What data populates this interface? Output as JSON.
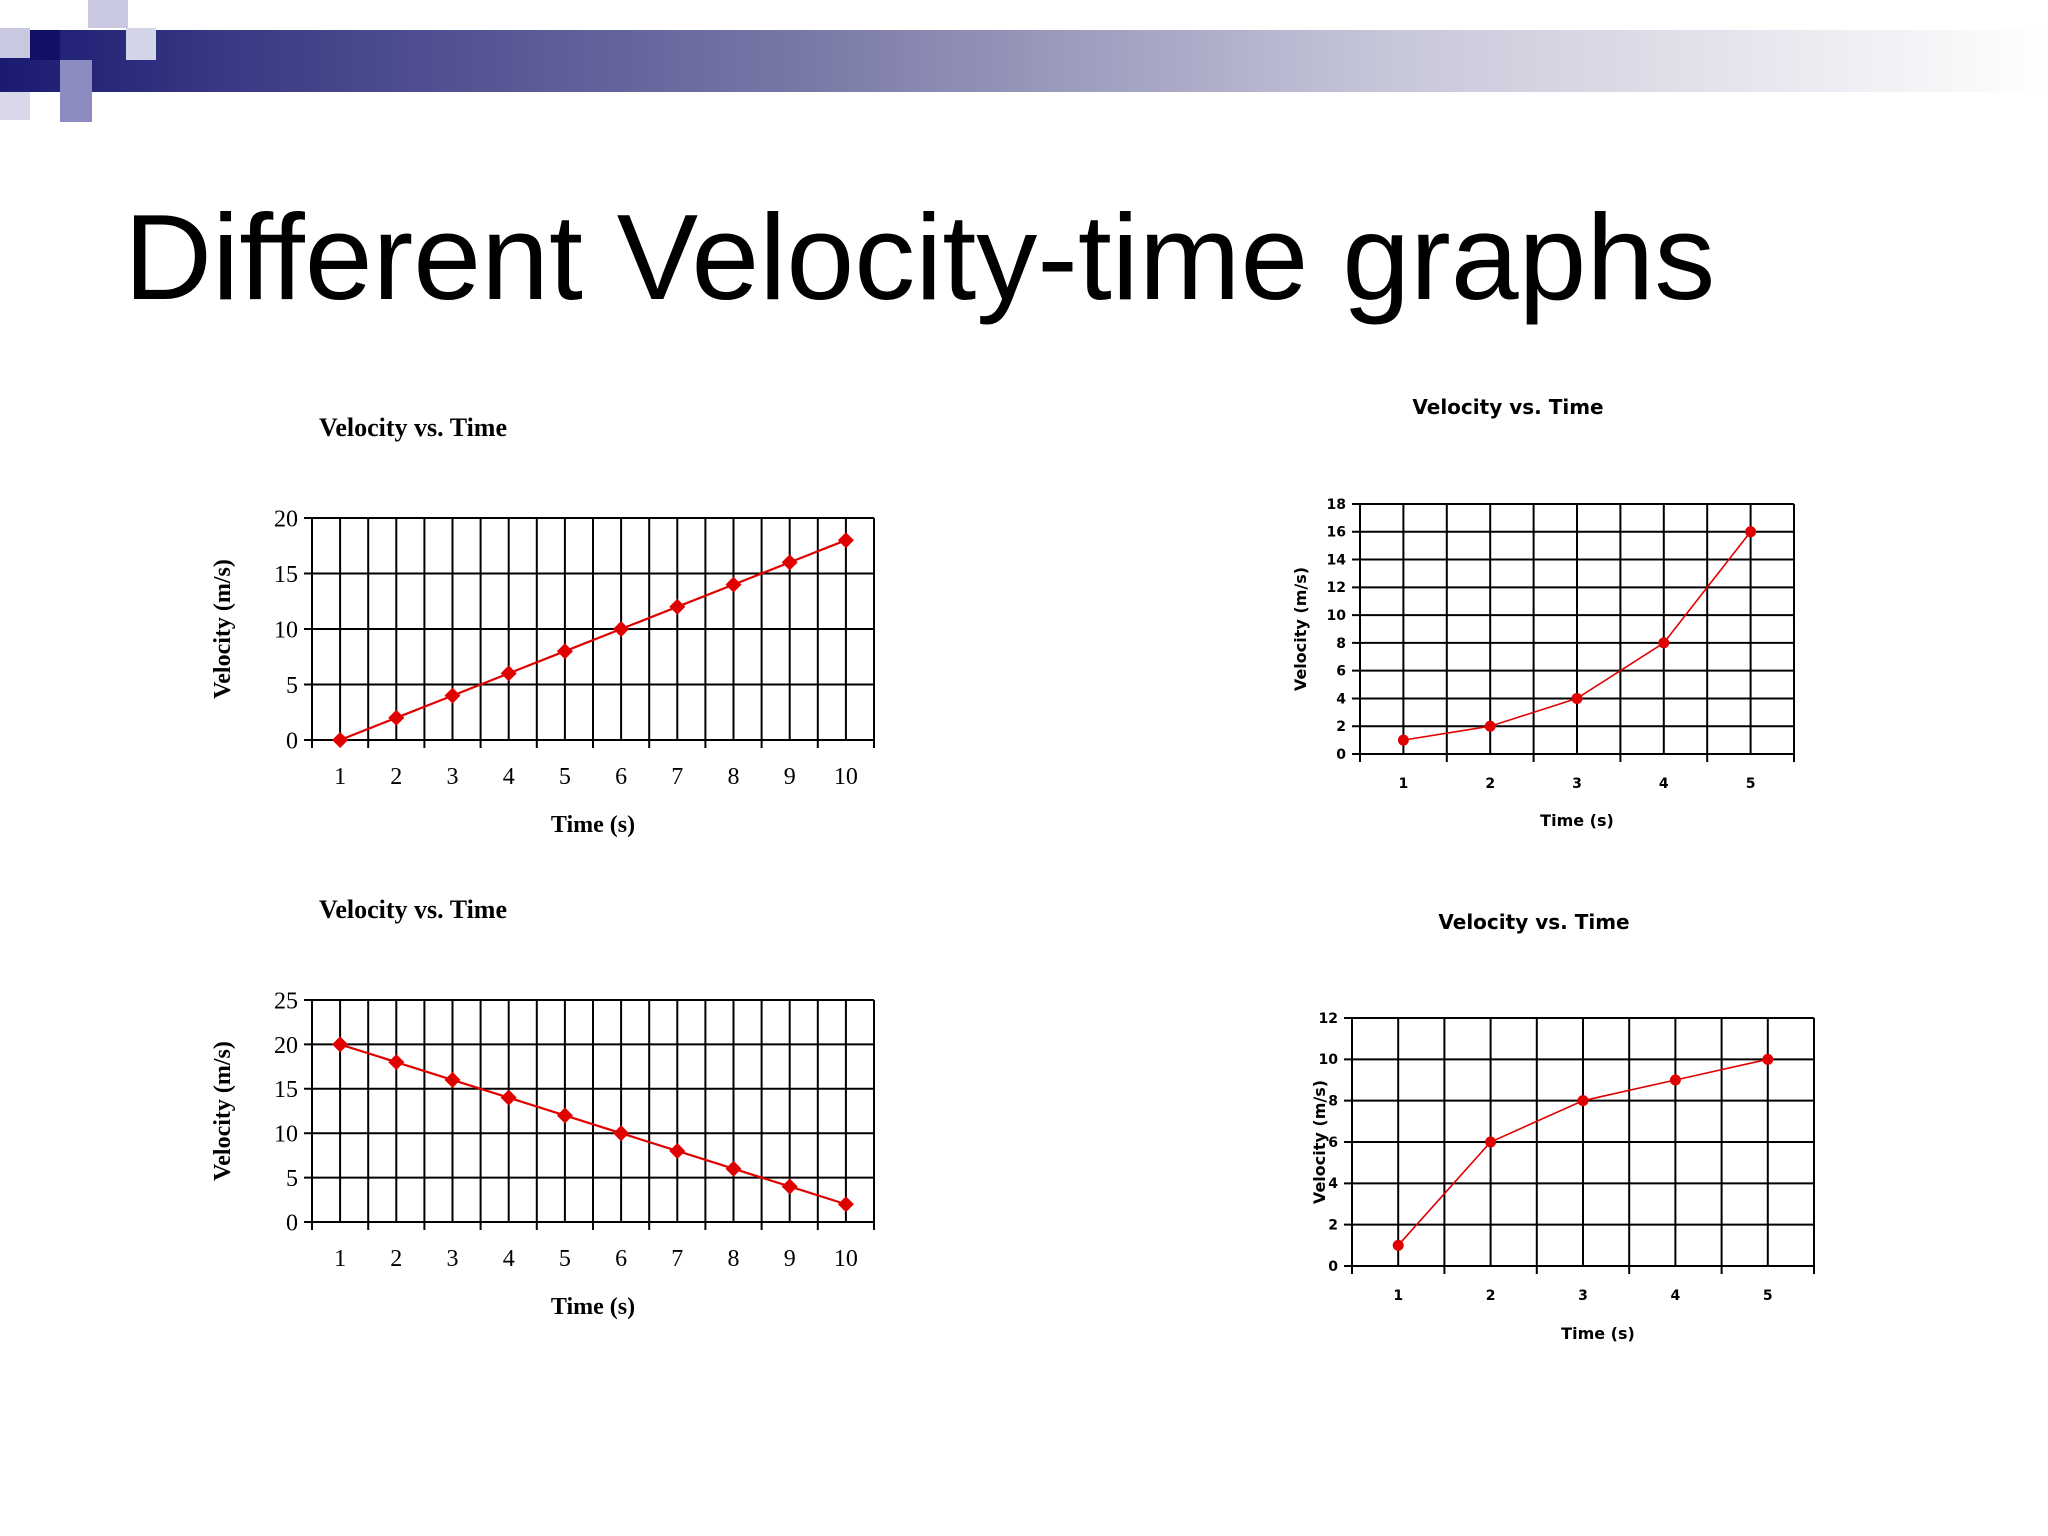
{
  "slide": {
    "title": "Different Velocity-time graphs"
  },
  "colors": {
    "line": "#e00000",
    "grid": "#000000",
    "banner_dark": "#1a1a72"
  },
  "chart_data": [
    {
      "type": "line",
      "title": "Velocity vs. Time",
      "xlabel": "Time (s)",
      "ylabel": "Velocity (m/s)",
      "categories": [
        "1",
        "2",
        "3",
        "4",
        "5",
        "6",
        "7",
        "8",
        "9",
        "10"
      ],
      "values": [
        0,
        2,
        4,
        6,
        8,
        10,
        12,
        14,
        16,
        18
      ],
      "ylim": [
        0,
        20
      ],
      "yticks": [
        0,
        5,
        10,
        15,
        20
      ],
      "grid": true,
      "marker": "diamond"
    },
    {
      "type": "line",
      "title": "Velocity vs. Time",
      "xlabel": "Time (s)",
      "ylabel": "Velocity (m/s)",
      "categories": [
        "1",
        "2",
        "3",
        "4",
        "5",
        "6",
        "7",
        "8",
        "9",
        "10"
      ],
      "values": [
        20,
        18,
        16,
        14,
        12,
        10,
        8,
        6,
        4,
        2
      ],
      "ylim": [
        0,
        25
      ],
      "yticks": [
        0,
        5,
        10,
        15,
        20,
        25
      ],
      "grid": true,
      "marker": "diamond"
    },
    {
      "type": "line",
      "title": "Velocity vs. Time",
      "xlabel": "Time (s)",
      "ylabel": "Velocity (m/s)",
      "categories": [
        "1",
        "2",
        "3",
        "4",
        "5"
      ],
      "values": [
        1,
        2,
        4,
        8,
        16
      ],
      "ylim": [
        0,
        18
      ],
      "yticks": [
        0,
        2,
        4,
        6,
        8,
        10,
        12,
        14,
        16,
        18
      ],
      "grid": true,
      "marker": "circle"
    },
    {
      "type": "line",
      "title": "Velocity vs. Time",
      "xlabel": "Time (s)",
      "ylabel": "Velocity (m/s)",
      "categories": [
        "1",
        "2",
        "3",
        "4",
        "5"
      ],
      "values": [
        1,
        6,
        8,
        9,
        10
      ],
      "ylim": [
        0,
        12
      ],
      "yticks": [
        0,
        2,
        4,
        6,
        8,
        10,
        12
      ],
      "grid": true,
      "marker": "circle"
    }
  ]
}
